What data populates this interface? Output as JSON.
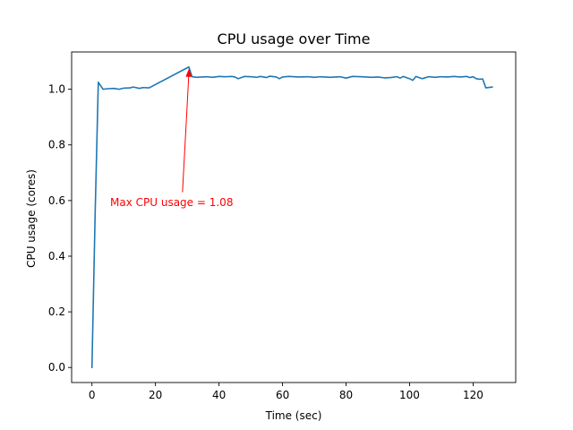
{
  "chart_data": {
    "type": "line",
    "title": "CPU usage over Time",
    "xlabel": "Time (sec)",
    "ylabel": "CPU usage (cores)",
    "xlim": [
      -6.4,
      133.4
    ],
    "ylim": [
      -0.054,
      1.134
    ],
    "xticks": [
      0,
      20,
      40,
      60,
      80,
      100,
      120
    ],
    "xtick_labels": [
      "0",
      "20",
      "40",
      "60",
      "80",
      "100",
      "120"
    ],
    "yticks": [
      0.0,
      0.2,
      0.4,
      0.6,
      0.8,
      1.0
    ],
    "ytick_labels": [
      "0.0",
      "0.2",
      "0.4",
      "0.6",
      "0.8",
      "1.0"
    ],
    "grid": false,
    "series": [
      {
        "color": "#1f77b4",
        "x": [
          0,
          1,
          2,
          3.5,
          5,
          7,
          8.5,
          10,
          12,
          13,
          15,
          16,
          18,
          30.5,
          31.5,
          33,
          36,
          38,
          40,
          42,
          44,
          45,
          46,
          48,
          50,
          52,
          53,
          55,
          56,
          58,
          59,
          60,
          62,
          65,
          68,
          70,
          72,
          75,
          78,
          80,
          82,
          85,
          88,
          90,
          92,
          94,
          96,
          97,
          98,
          100,
          101,
          102,
          104,
          106,
          108,
          110,
          112,
          114,
          116,
          118,
          119,
          120,
          121,
          122,
          123,
          124,
          126
        ],
        "values": [
          0.0,
          0.55,
          1.025,
          1.0,
          1.002,
          1.003,
          1.0,
          1.004,
          1.005,
          1.008,
          1.003,
          1.006,
          1.005,
          1.08,
          1.045,
          1.043,
          1.045,
          1.043,
          1.046,
          1.045,
          1.046,
          1.044,
          1.038,
          1.046,
          1.045,
          1.043,
          1.046,
          1.042,
          1.047,
          1.044,
          1.038,
          1.044,
          1.046,
          1.044,
          1.045,
          1.043,
          1.045,
          1.043,
          1.045,
          1.04,
          1.046,
          1.045,
          1.043,
          1.044,
          1.041,
          1.042,
          1.045,
          1.04,
          1.046,
          1.038,
          1.032,
          1.046,
          1.038,
          1.045,
          1.043,
          1.045,
          1.044,
          1.046,
          1.044,
          1.046,
          1.042,
          1.045,
          1.038,
          1.036,
          1.037,
          1.005,
          1.008
        ]
      }
    ],
    "annotation": {
      "text": "Max CPU usage = 1.08",
      "color": "#ff0000",
      "point": [
        30.5,
        1.08
      ],
      "text_anchor_point": [
        28.5,
        0.63
      ]
    }
  }
}
